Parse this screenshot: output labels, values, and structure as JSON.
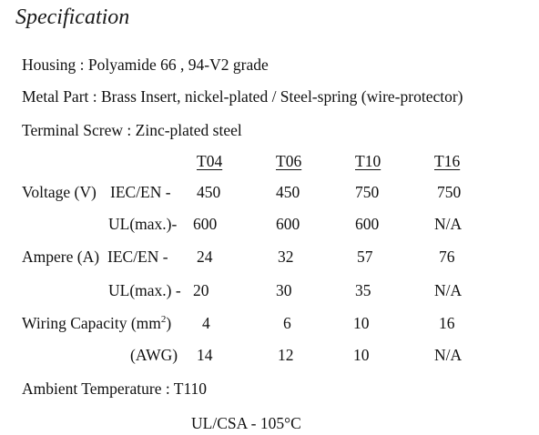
{
  "title": "Specification",
  "housing": "Housing : Polyamide 66 ,  94-V2 grade",
  "metal_part": "Metal Part : Brass Insert, nickel-plated / Steel-spring (wire-protector)",
  "terminal_screw": "Terminal Screw : Zinc-plated steel",
  "columns": [
    "T04",
    "T06",
    "T10",
    "T16"
  ],
  "voltage": {
    "label": "Voltage (V)",
    "iec_label": "IEC/EN -",
    "iec_values": [
      "450",
      "450",
      "750",
      "750"
    ],
    "ul_label": "UL(max.)-",
    "ul_values": [
      "600",
      "600",
      "600",
      "N/A"
    ]
  },
  "ampere": {
    "label": "Ampere (A)",
    "iec_label": "IEC/EN -",
    "iec_values": [
      "24",
      "32",
      "57",
      "76"
    ],
    "ul_label": "UL(max.) -",
    "ul_values": [
      "20",
      "30",
      "35",
      "N/A"
    ]
  },
  "wiring": {
    "label": "Wiring Capacity (mm",
    "label_sup": "2",
    "label_close": ")",
    "mm_values": [
      "4",
      "6",
      "10",
      "16"
    ],
    "awg_label": "(AWG)",
    "awg_values": [
      "14",
      "12",
      "10",
      "N/A"
    ]
  },
  "ambient": {
    "label": "Ambient Temperature : T110",
    "ul_csa": "UL/CSA - 105°C"
  }
}
